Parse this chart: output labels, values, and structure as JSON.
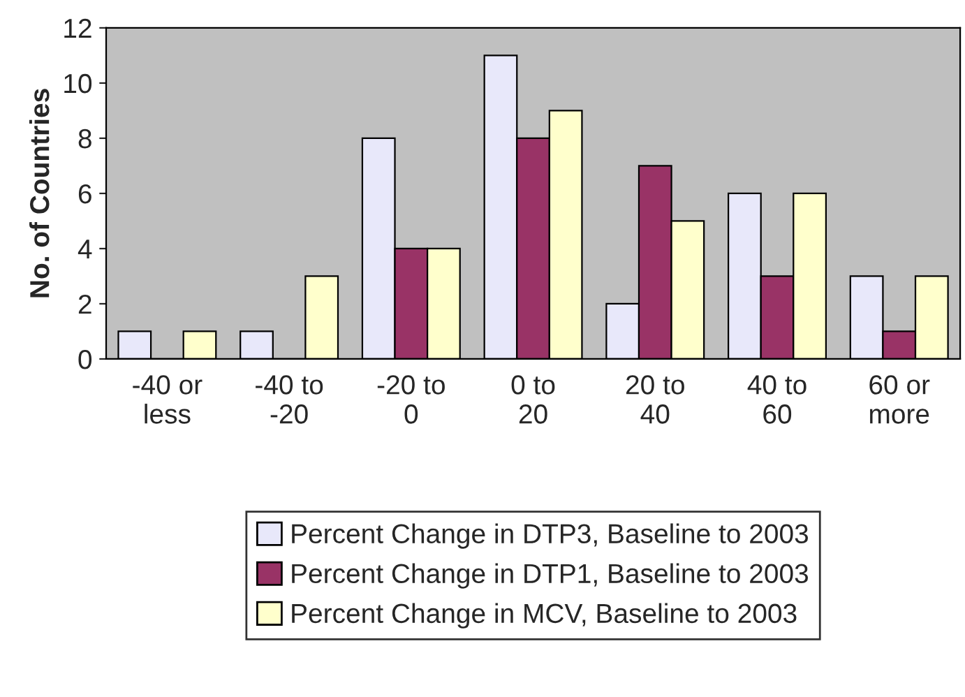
{
  "chart_data": {
    "type": "bar",
    "ylabel": "No. of Countries",
    "categories": [
      "-40 or\nless",
      "-40 to\n-20",
      "-20 to\n0",
      "0 to\n20",
      "20 to\n40",
      "40 to\n60",
      "60 or\nmore"
    ],
    "series": [
      {
        "name": "Percent Change in DTP3, Baseline to 2003",
        "color": "#e8e8fa",
        "values": [
          1,
          1,
          8,
          11,
          2,
          6,
          3
        ]
      },
      {
        "name": "Percent Change in DTP1, Baseline to 2003",
        "color": "#993366",
        "values": [
          0,
          0,
          4,
          8,
          7,
          3,
          1
        ]
      },
      {
        "name": "Percent Change in MCV, Baseline to 2003",
        "color": "#ffffcc",
        "values": [
          1,
          3,
          4,
          9,
          5,
          6,
          3
        ]
      }
    ],
    "ylim": [
      0,
      12
    ],
    "yticks": [
      0,
      2,
      4,
      6,
      8,
      10,
      12
    ],
    "grid": false,
    "legend": "bottom"
  }
}
